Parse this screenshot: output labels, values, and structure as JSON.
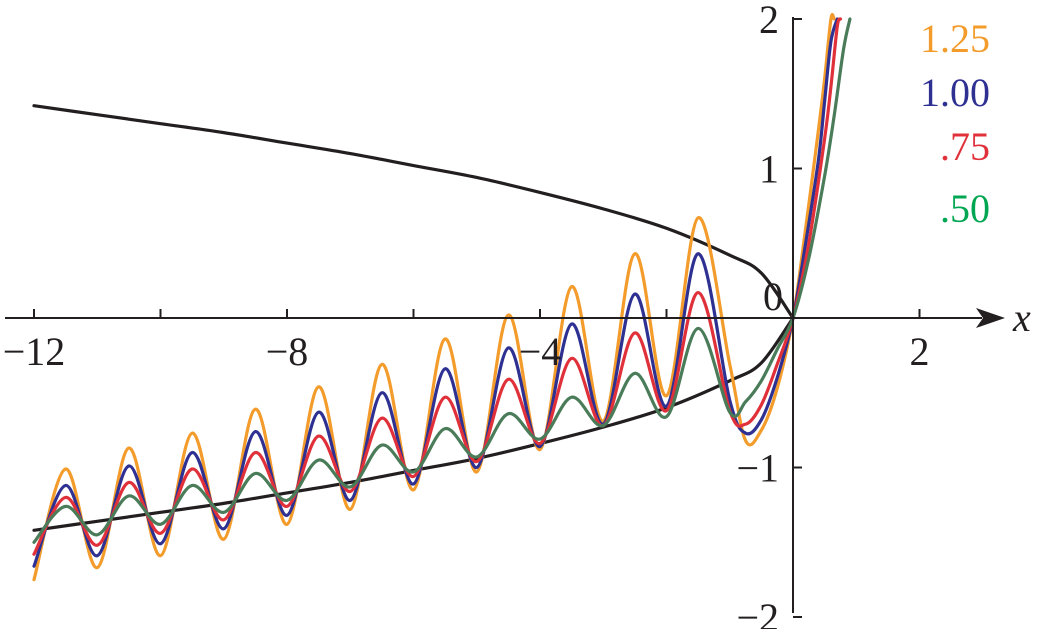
{
  "chart_data": {
    "type": "line",
    "title": "",
    "xlabel": "x",
    "ylabel": "",
    "xlim": [
      -12.6,
      2.8
    ],
    "ylim": [
      -2,
      2
    ],
    "grid": false,
    "x_ticks": [
      -12,
      -8,
      -4,
      0,
      2
    ],
    "x_tick_labels": [
      "−12",
      "−8",
      "−4",
      "0",
      "2"
    ],
    "y_ticks": [
      2,
      1,
      -1,
      -2
    ],
    "y_tick_labels": [
      "2",
      "1",
      "−1",
      "−2"
    ],
    "legend": {
      "placement": "top-right",
      "entries": [
        {
          "label": "1.25",
          "color": "#f39c2b"
        },
        {
          "label": "1.00",
          "color": "#2e3192"
        },
        {
          "label": ".75",
          "color": "#e0303a"
        },
        {
          "label": ".50",
          "color": "#00a651"
        }
      ]
    },
    "series": [
      {
        "color": "#231f20",
        "x": [
          -12,
          -11,
          -10,
          -9,
          -8,
          -7,
          -6,
          -5,
          -4,
          -3,
          -2,
          -1,
          -0.5,
          0
        ],
        "y": [
          1.42,
          1.36,
          1.3,
          1.24,
          1.17,
          1.1,
          1.02,
          0.94,
          0.84,
          0.73,
          0.6,
          0.42,
          0.3,
          0
        ]
      },
      {
        "color": "#231f20",
        "x": [
          -12,
          -11,
          -10,
          -9,
          -8,
          -7,
          -6,
          -5,
          -4,
          -3,
          -2,
          -1,
          -0.5,
          0
        ],
        "y": [
          -1.42,
          -1.36,
          -1.3,
          -1.24,
          -1.17,
          -1.1,
          -1.02,
          -0.94,
          -0.84,
          -0.73,
          -0.6,
          -0.42,
          -0.3,
          0
        ]
      },
      {
        "color": "#f39c2b",
        "x": [
          -12,
          -11.5,
          -11,
          -10.5,
          -10,
          -9.5,
          -9,
          -8.5,
          -8,
          -7.5,
          -7,
          -6.5,
          -6,
          -5.5,
          -5,
          -4.5,
          -4,
          -3.5,
          -3,
          -2.5,
          -2,
          -1.5,
          -1,
          -0.75,
          -0.5,
          -0.25,
          0,
          0.2,
          0.4,
          0.5,
          0.6,
          0.65
        ],
        "y": [
          -1.75,
          -1.01,
          -1.67,
          -0.87,
          -1.59,
          -0.77,
          -1.48,
          -0.61,
          -1.38,
          -0.46,
          -1.28,
          -0.31,
          -1.15,
          -0.14,
          -1.03,
          0.02,
          -0.88,
          0.21,
          -0.69,
          0.43,
          -0.52,
          0.67,
          -0.31,
          -0.82,
          -0.75,
          -0.47,
          0,
          0.6,
          1.25,
          1.6,
          2.0,
          2.0
        ]
      },
      {
        "color": "#2e3192",
        "x": [
          -12,
          -11.5,
          -11,
          -10.5,
          -10,
          -9.5,
          -9,
          -8.5,
          -8,
          -7.5,
          -7,
          -6.5,
          -6,
          -5.5,
          -5,
          -4.5,
          -4,
          -3.5,
          -3,
          -2.5,
          -2,
          -1.5,
          -1,
          -0.75,
          -0.5,
          -0.25,
          0,
          0.2,
          0.4,
          0.5,
          0.6,
          0.7
        ],
        "y": [
          -1.66,
          -1.12,
          -1.59,
          -0.99,
          -1.51,
          -0.9,
          -1.41,
          -0.76,
          -1.32,
          -0.63,
          -1.22,
          -0.5,
          -1.11,
          -0.34,
          -1.0,
          -0.2,
          -0.86,
          -0.04,
          -0.71,
          0.16,
          -0.59,
          0.43,
          -0.55,
          -0.77,
          -0.68,
          -0.4,
          0,
          0.5,
          1.05,
          1.45,
          1.85,
          2.0
        ]
      },
      {
        "color": "#e0303a",
        "x": [
          -12,
          -11.5,
          -11,
          -10.5,
          -10,
          -9.5,
          -9,
          -8.5,
          -8,
          -7.5,
          -7,
          -6.5,
          -6,
          -5.5,
          -5,
          -4.5,
          -4,
          -3.5,
          -3,
          -2.5,
          -2,
          -1.5,
          -1,
          -0.75,
          -0.5,
          -0.25,
          0,
          0.25,
          0.5,
          0.6,
          0.7,
          0.75
        ],
        "y": [
          -1.58,
          -1.2,
          -1.52,
          -1.1,
          -1.44,
          -1.01,
          -1.35,
          -0.9,
          -1.26,
          -0.79,
          -1.16,
          -0.67,
          -1.06,
          -0.53,
          -0.96,
          -0.41,
          -0.84,
          -0.27,
          -0.72,
          -0.1,
          -0.62,
          0.17,
          -0.62,
          -0.71,
          -0.58,
          -0.31,
          0,
          0.5,
          1.2,
          1.55,
          1.95,
          2.0
        ]
      },
      {
        "color": "#4a7c59",
        "x": [
          -12,
          -11.5,
          -11,
          -10.5,
          -10,
          -9.5,
          -9,
          -8.5,
          -8,
          -7.5,
          -7,
          -6.5,
          -6,
          -5.5,
          -5,
          -4.5,
          -4,
          -3.5,
          -3,
          -2.5,
          -2,
          -1.5,
          -1,
          -0.75,
          -0.5,
          -0.25,
          0,
          0.25,
          0.5,
          0.65,
          0.8,
          0.9
        ],
        "y": [
          -1.5,
          -1.26,
          -1.45,
          -1.19,
          -1.38,
          -1.12,
          -1.3,
          -1.04,
          -1.22,
          -0.95,
          -1.13,
          -0.85,
          -1.03,
          -0.74,
          -0.93,
          -0.64,
          -0.81,
          -0.53,
          -0.72,
          -0.37,
          -0.66,
          -0.07,
          -0.63,
          -0.56,
          -0.42,
          -0.21,
          0,
          0.4,
          0.95,
          1.35,
          1.8,
          2.0
        ]
      }
    ]
  }
}
